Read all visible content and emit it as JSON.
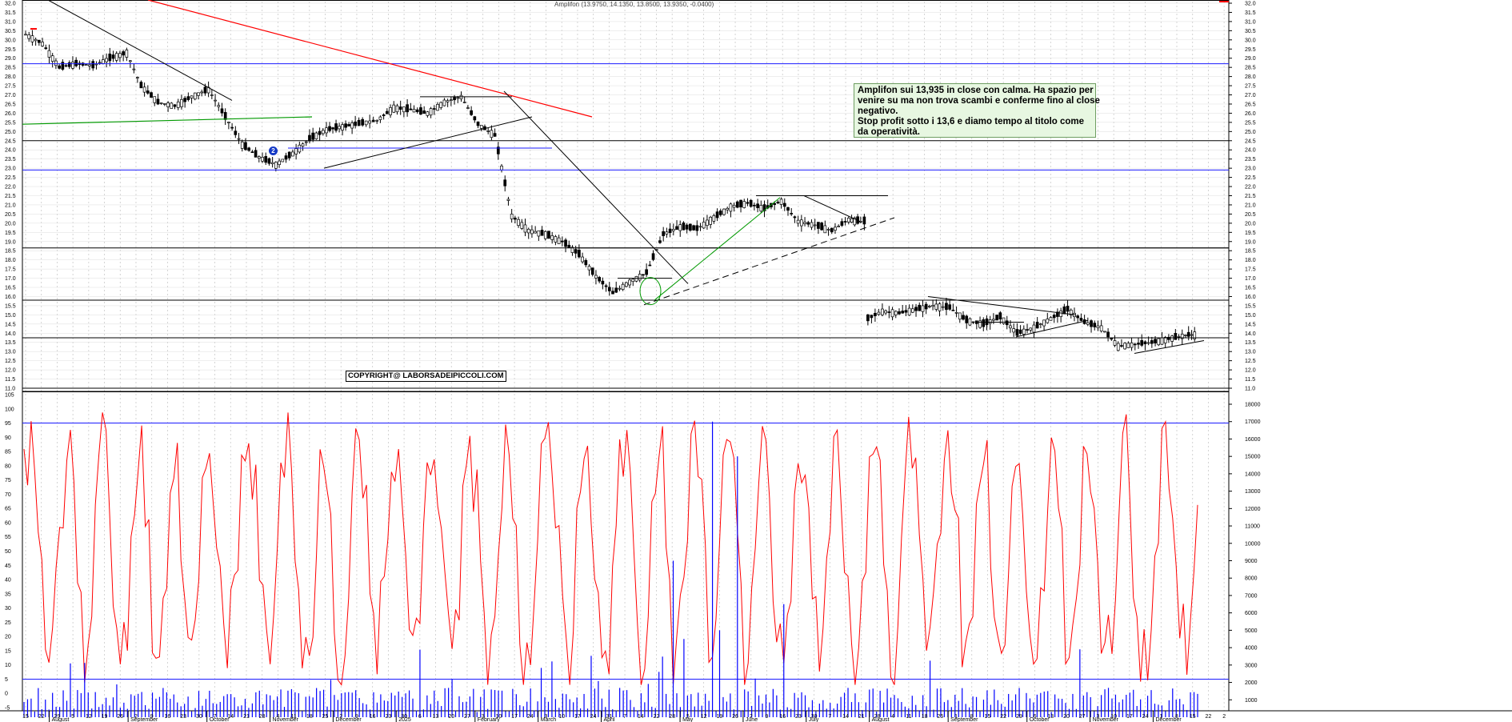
{
  "header": {
    "text": "Amplifon (13.9750, 14.1350, 13.8500, 13.9350, -0.0400)"
  },
  "note": {
    "lines": [
      "Amplifon sui 13,935 in close con calma. Ha spazio per",
      "venire su ma non trova scambi e conferme fino al close",
      "negativo.",
      "Stop profit sotto i 13,6 e diamo tempo al titolo come",
      "da operatività."
    ]
  },
  "copyright": "COPYRIGHT@ LABORSADEIPICCOLI.COM",
  "marker": "2",
  "colors": {
    "price": "#000000",
    "blue_line": "#1a1aff",
    "red_line": "#ff0000",
    "green_line": "#009900",
    "oscillator": "#ff0000",
    "volume": "#0000ff",
    "grid": "#cccccc"
  },
  "chart_data": [
    {
      "type": "candlestick",
      "title": "Amplifon",
      "ylim": [
        11.0,
        32.0
      ],
      "y_ticks": [
        "32.0",
        "31.5",
        "31.0",
        "30.5",
        "30.0",
        "29.5",
        "29.0",
        "28.5",
        "28.0",
        "27.5",
        "27.0",
        "26.5",
        "26.0",
        "25.5",
        "25.0",
        "24.5",
        "24.0",
        "23.5",
        "23.0",
        "22.5",
        "22.0",
        "21.5",
        "21.0",
        "20.5",
        "20.0",
        "19.5",
        "19.0",
        "18.5",
        "18.0",
        "17.5",
        "17.0",
        "16.5",
        "16.0",
        "15.5",
        "15.0",
        "14.5",
        "14.0",
        "13.5",
        "13.0",
        "12.5",
        "12.0",
        "11.5",
        "11.0"
      ],
      "day_ticks": [
        "15",
        "22",
        "29",
        "5",
        "12",
        "19",
        "26",
        "2",
        "9",
        "16",
        "23",
        "30",
        "7",
        "14",
        "21",
        "28",
        "4",
        "11",
        "18",
        "25",
        "2",
        "9",
        "16",
        "23",
        "30",
        "6",
        "13",
        "20",
        "27",
        "3",
        "10",
        "17",
        "24",
        "3",
        "10",
        "17",
        "24",
        "31",
        "7",
        "14",
        "22",
        "28",
        "5",
        "12",
        "19",
        "26",
        "2",
        "9",
        "16",
        "23",
        "30",
        "7",
        "14",
        "21",
        "28",
        "4",
        "11",
        "18",
        "25",
        "1",
        "8",
        "15",
        "22",
        "29",
        "6",
        "13",
        "20",
        "27",
        "3",
        "10",
        "17",
        "24",
        "1",
        "8",
        "15",
        "22",
        "2"
      ],
      "month_labels": [
        "August",
        "September",
        "October",
        "November",
        "December",
        "2025",
        "February",
        "March",
        "April",
        "May",
        "June",
        "July",
        "August",
        "September",
        "October",
        "November",
        "December"
      ],
      "horizontal_levels": [
        {
          "value": 28.7,
          "color": "blue"
        },
        {
          "value": 24.5,
          "color": "black"
        },
        {
          "value": 22.9,
          "color": "blue"
        },
        {
          "value": 18.65,
          "color": "black"
        },
        {
          "value": 15.8,
          "color": "black"
        },
        {
          "value": 13.75,
          "color": "black"
        },
        {
          "value": 11.0,
          "color": "black"
        }
      ],
      "series": [
        {
          "values": [
            [
              "2024-08-15",
              30.3
            ],
            [
              "2024-08-22",
              29.8
            ],
            [
              "2024-08-29",
              28.5
            ],
            [
              "2024-09-05",
              28.7
            ],
            [
              "2024-09-12",
              28.6
            ],
            [
              "2024-09-19",
              29.0
            ],
            [
              "2024-09-26",
              29.3
            ],
            [
              "2024-10-02",
              27.5
            ],
            [
              "2024-10-09",
              26.6
            ],
            [
              "2024-10-16",
              26.4
            ],
            [
              "2024-10-23",
              26.9
            ],
            [
              "2024-10-30",
              27.3
            ],
            [
              "2024-11-06",
              25.8
            ],
            [
              "2024-11-13",
              24.3
            ],
            [
              "2024-11-20",
              23.6
            ],
            [
              "2024-11-27",
              23.2
            ],
            [
              "2024-12-04",
              23.8
            ],
            [
              "2024-12-11",
              24.6
            ],
            [
              "2024-12-18",
              25.1
            ],
            [
              "2024-12-30",
              25.4
            ],
            [
              "2025-01-08",
              25.6
            ],
            [
              "2025-01-15",
              26.3
            ],
            [
              "2025-01-22",
              26.2
            ],
            [
              "2025-01-29",
              26.0
            ],
            [
              "2025-02-05",
              26.6
            ],
            [
              "2025-02-12",
              26.9
            ],
            [
              "2025-02-19",
              25.4
            ],
            [
              "2025-02-26",
              24.8
            ],
            [
              "2025-03-05",
              20.4
            ],
            [
              "2025-03-12",
              19.6
            ],
            [
              "2025-03-19",
              19.4
            ],
            [
              "2025-03-26",
              19.0
            ],
            [
              "2025-04-02",
              18.3
            ],
            [
              "2025-04-09",
              17.1
            ],
            [
              "2025-04-16",
              16.2
            ],
            [
              "2025-04-23",
              16.8
            ],
            [
              "2025-04-30",
              17.3
            ],
            [
              "2025-05-07",
              19.4
            ],
            [
              "2025-05-14",
              19.8
            ],
            [
              "2025-05-21",
              19.7
            ],
            [
              "2025-05-28",
              20.3
            ],
            [
              "2025-06-04",
              20.9
            ],
            [
              "2025-06-11",
              21.1
            ],
            [
              "2025-06-18",
              20.8
            ],
            [
              "2025-06-25",
              21.2
            ],
            [
              "2025-07-02",
              20.1
            ],
            [
              "2025-07-09",
              19.9
            ],
            [
              "2025-07-16",
              19.6
            ],
            [
              "2025-07-23",
              20.2
            ],
            [
              "2025-07-28",
              20.1
            ],
            [
              "2025-07-31",
              14.8
            ],
            [
              "2025-08-06",
              15.2
            ],
            [
              "2025-08-13",
              15.1
            ],
            [
              "2025-08-20",
              15.3
            ],
            [
              "2025-08-27",
              15.5
            ],
            [
              "2025-09-03",
              15.4
            ],
            [
              "2025-09-10",
              14.7
            ],
            [
              "2025-09-17",
              14.5
            ],
            [
              "2025-09-24",
              14.9
            ],
            [
              "2025-10-01",
              14.0
            ],
            [
              "2025-10-08",
              14.3
            ],
            [
              "2025-10-15",
              14.8
            ],
            [
              "2025-10-22",
              15.3
            ],
            [
              "2025-10-29",
              14.6
            ],
            [
              "2025-11-05",
              14.3
            ],
            [
              "2025-11-12",
              13.3
            ],
            [
              "2025-11-19",
              13.4
            ],
            [
              "2025-11-26",
              13.5
            ],
            [
              "2025-12-03",
              13.7
            ],
            [
              "2025-12-10",
              13.9
            ],
            [
              "2025-12-15",
              13.935
            ]
          ]
        }
      ]
    },
    {
      "type": "line",
      "title": "",
      "ylim": [
        0,
        105
      ],
      "y_ticks": [
        "105",
        "100",
        "95",
        "90",
        "85",
        "80",
        "75",
        "70",
        "65",
        "60",
        "55",
        "50",
        "45",
        "40",
        "35",
        "30",
        "25",
        "20",
        "15",
        "10",
        "5",
        "0",
        "-5"
      ],
      "levels": [
        95,
        5
      ]
    },
    {
      "type": "bar",
      "title": "",
      "ylim": [
        0,
        18000
      ],
      "y_ticks": [
        "18000",
        "17000",
        "16000",
        "15000",
        "14000",
        "13000",
        "12000",
        "11000",
        "10000",
        "9000",
        "8000",
        "7000",
        "6000",
        "5000",
        "4000",
        "3000",
        "2000",
        "1000"
      ]
    }
  ]
}
